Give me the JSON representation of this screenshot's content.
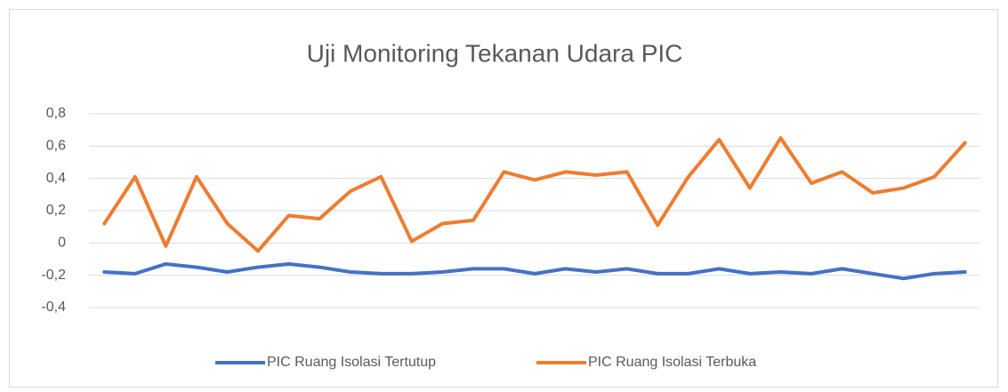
{
  "chart_data": {
    "type": "line",
    "title": "Uji Monitoring Tekanan Udara PIC",
    "categories": [
      null,
      null,
      null,
      null,
      null,
      null,
      null,
      null,
      null,
      null,
      null,
      null,
      null,
      null,
      null,
      null,
      null,
      null,
      null,
      null,
      null,
      null,
      null,
      null,
      null,
      null,
      null,
      null,
      null
    ],
    "series": [
      {
        "name": "PIC Ruang Isolasi Tertutup",
        "color": "#4472c4",
        "values": [
          -0.18,
          -0.19,
          -0.13,
          -0.15,
          -0.18,
          -0.15,
          -0.13,
          -0.15,
          -0.18,
          -0.19,
          -0.19,
          -0.18,
          -0.16,
          -0.16,
          -0.19,
          -0.16,
          -0.18,
          -0.16,
          -0.19,
          -0.19,
          -0.16,
          -0.19,
          -0.18,
          -0.19,
          -0.16,
          -0.19,
          -0.22,
          -0.19,
          -0.18
        ]
      },
      {
        "name": "PIC Ruang Isolasi Terbuka",
        "color": "#ed7d31",
        "values": [
          0.12,
          0.41,
          -0.02,
          0.41,
          0.12,
          -0.05,
          0.17,
          0.15,
          0.32,
          0.41,
          0.01,
          0.12,
          0.14,
          0.44,
          0.39,
          0.44,
          0.42,
          0.44,
          0.11,
          0.41,
          0.64,
          0.34,
          0.65,
          0.37,
          0.44,
          0.31,
          0.34,
          0.41,
          0.62
        ]
      }
    ],
    "ylim": [
      -0.4,
      0.8
    ],
    "yticks": [
      {
        "value": -0.4,
        "label": "-0,4"
      },
      {
        "value": -0.2,
        "label": "-0,2"
      },
      0,
      {
        "value": 0.2,
        "label": "0,2"
      },
      {
        "value": 0.4,
        "label": "0,4"
      },
      {
        "value": 0.6,
        "label": "0,6"
      },
      {
        "value": 0.8,
        "label": "0,8"
      }
    ],
    "grid": true,
    "legend": "bottom"
  }
}
